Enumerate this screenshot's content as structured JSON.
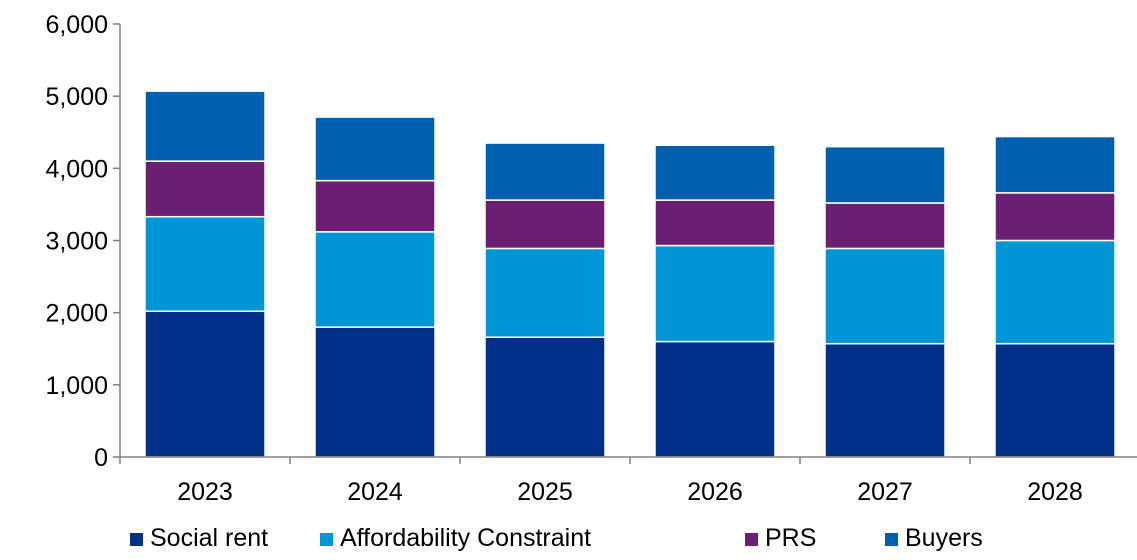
{
  "chart_data": {
    "type": "bar",
    "stacked": true,
    "title": "",
    "xlabel": "",
    "ylabel": "",
    "categories": [
      "2023",
      "2024",
      "2025",
      "2026",
      "2027",
      "2028"
    ],
    "ylim": [
      0,
      6000
    ],
    "yticks": [
      0,
      1000,
      2000,
      3000,
      4000,
      5000,
      6000
    ],
    "ytick_labels": [
      "0",
      "1,000",
      "2,000",
      "3,000",
      "4,000",
      "5,000",
      "6,000"
    ],
    "grid": false,
    "legend_position": "bottom",
    "series": [
      {
        "name": "Social rent",
        "color": "#003087",
        "values": [
          2020,
          1800,
          1660,
          1600,
          1570,
          1570
        ]
      },
      {
        "name": "Affordability Constraint",
        "color": "#0096d6",
        "values": [
          1310,
          1320,
          1230,
          1330,
          1320,
          1430
        ]
      },
      {
        "name": "PRS",
        "color": "#6b1f72",
        "values": [
          770,
          710,
          670,
          630,
          630,
          660
        ]
      },
      {
        "name": "Buyers",
        "color": "#0060b0",
        "values": [
          970,
          880,
          790,
          760,
          780,
          780
        ]
      }
    ]
  }
}
